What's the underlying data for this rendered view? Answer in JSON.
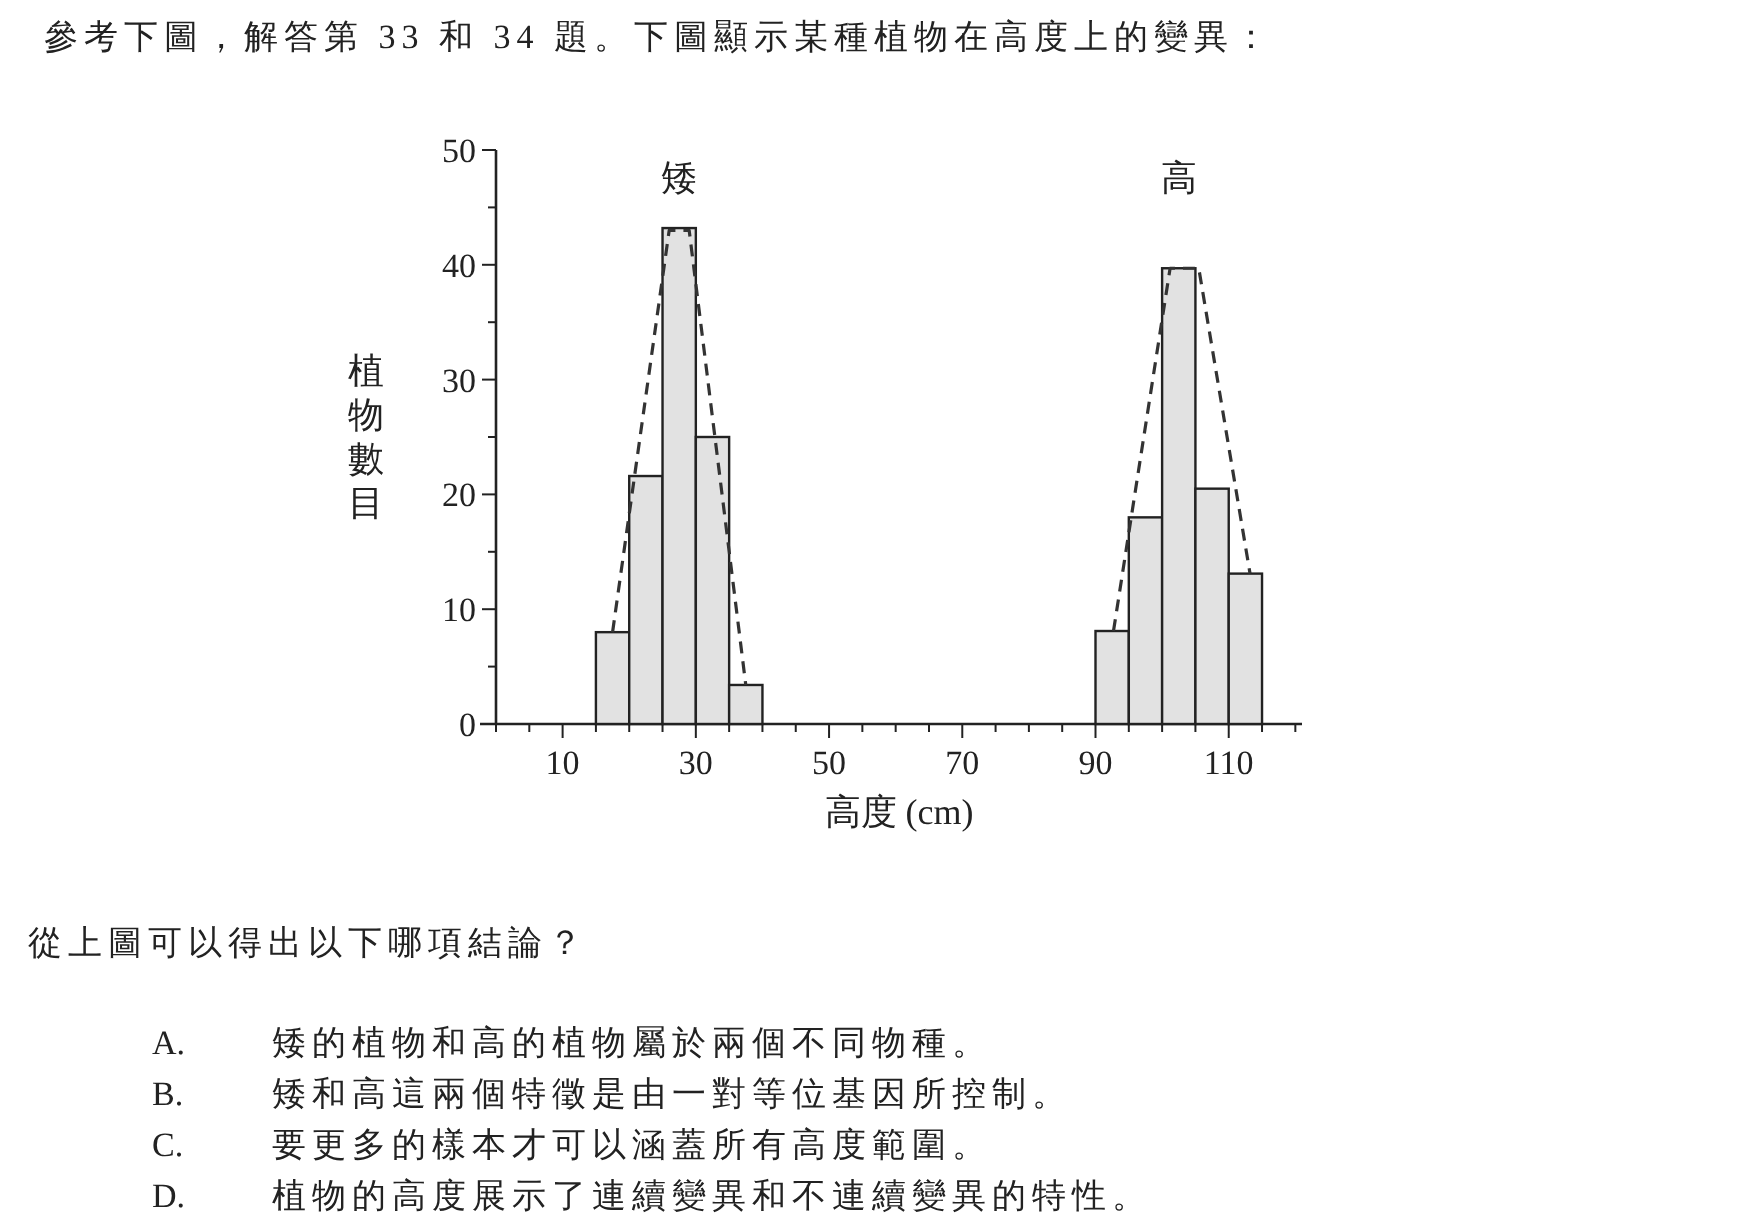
{
  "chart_data": {
    "type": "histogram",
    "title": "參考下圖，解答第 33 和 34 題。下圖顯示某種植物在高度上的變異：",
    "xlabel": "高度 (cm)",
    "ylabel": "植物數目",
    "xlim": [
      0,
      121
    ],
    "ylim": [
      0,
      50
    ],
    "xticks": [
      {
        "value": 0,
        "label": null
      },
      {
        "value": 5,
        "label": null
      },
      10,
      {
        "value": 15,
        "label": null
      },
      {
        "value": 20,
        "label": null
      },
      {
        "value": 25,
        "label": null
      },
      30,
      {
        "value": 35,
        "label": null
      },
      {
        "value": 40,
        "label": null
      },
      {
        "value": 45,
        "label": null
      },
      50,
      {
        "value": 55,
        "label": null
      },
      {
        "value": 60,
        "label": null
      },
      {
        "value": 65,
        "label": null
      },
      70,
      {
        "value": 75,
        "label": null
      },
      {
        "value": 80,
        "label": null
      },
      {
        "value": 85,
        "label": null
      },
      90,
      {
        "value": 95,
        "label": null
      },
      {
        "value": 100,
        "label": null
      },
      {
        "value": 105,
        "label": null
      },
      110,
      {
        "value": 115,
        "label": null
      },
      {
        "value": 120,
        "label": null
      }
    ],
    "yticks": [
      0,
      {
        "value": 5,
        "label": null
      },
      10,
      {
        "value": 15,
        "label": null
      },
      20,
      {
        "value": 25,
        "label": null
      },
      30,
      {
        "value": 35,
        "label": null
      },
      40,
      {
        "value": 45,
        "label": null
      },
      50
    ],
    "series": [
      {
        "name": "矮",
        "color": "#e2e2e2",
        "bins": [
          15,
          20,
          25,
          30,
          35,
          40
        ],
        "values": [
          8,
          21.6,
          43.2,
          25,
          3.4
        ]
      },
      {
        "name": "高",
        "color": "#e2e2e2",
        "bins": [
          90,
          95,
          100,
          105,
          110,
          115
        ],
        "values": [
          8.1,
          18,
          39.7,
          20.5,
          13.1
        ]
      },
      {
        "type": "line",
        "color": "#333333",
        "line_style": "dashed",
        "x": [
          17.5,
          26,
          29,
          37.5
        ],
        "values": [
          8,
          43,
          43,
          3.4
        ]
      },
      {
        "type": "line",
        "color": "#333333",
        "line_style": "dashed",
        "x": [
          92.7,
          101.2,
          105.5,
          113.2
        ],
        "values": [
          8.1,
          39.7,
          39.7,
          13.1
        ]
      }
    ],
    "annotations": [
      "從上圖可以得出以下哪項結論？",
      "A.",
      "矮的植物和高的植物屬於兩個不同物種。",
      "B.",
      "矮和高這兩個特徵是由一對等位基因所控制。",
      "C.",
      "要更多的樣本才可以涵蓋所有高度範圍。",
      "D.",
      "植物的高度展示了連續變異和不連續變異的特性。"
    ]
  }
}
